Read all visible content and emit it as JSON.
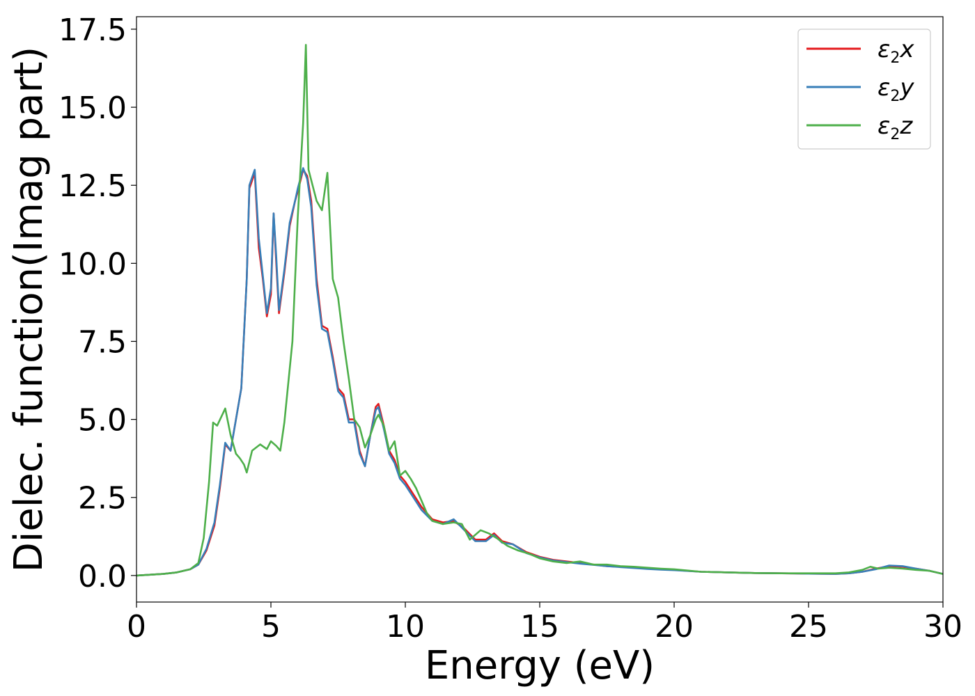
{
  "chart_data": {
    "type": "line",
    "title": "",
    "xlabel": "Energy (eV)",
    "ylabel": "Dielec. function(Imag part)",
    "xlim": [
      0,
      30
    ],
    "ylim": [
      -0.85,
      17.9
    ],
    "xticks": [
      0,
      5,
      10,
      15,
      20,
      25,
      30
    ],
    "xtick_labels": [
      "0",
      "5",
      "10",
      "15",
      "20",
      "25",
      "30"
    ],
    "yticks": [
      0,
      2.5,
      5,
      7.5,
      10,
      12.5,
      15,
      17.5
    ],
    "ytick_labels": [
      "0.0",
      "2.5",
      "5.0",
      "7.5",
      "10.0",
      "12.5",
      "15.0",
      "17.5"
    ],
    "grid": false,
    "legend_position": "top-right",
    "series": [
      {
        "name": "ε2x",
        "symbol": "ε",
        "subscript": "2",
        "suffix": "x",
        "color": "#e41a1c",
        "x": [
          0,
          1,
          1.5,
          2,
          2.3,
          2.6,
          2.9,
          3.1,
          3.3,
          3.5,
          3.7,
          3.9,
          4.1,
          4.2,
          4.4,
          4.55,
          4.7,
          4.85,
          5.0,
          5.1,
          5.2,
          5.3,
          5.5,
          5.7,
          5.9,
          6.0,
          6.2,
          6.35,
          6.5,
          6.7,
          6.9,
          7.1,
          7.3,
          7.5,
          7.7,
          7.9,
          8.1,
          8.3,
          8.5,
          8.7,
          8.9,
          9.0,
          9.2,
          9.4,
          9.6,
          9.8,
          10.0,
          10.3,
          10.6,
          11.0,
          11.4,
          11.8,
          12.2,
          12.6,
          13.0,
          13.3,
          13.6,
          14.0,
          14.5,
          15.0,
          15.5,
          16.0,
          16.5,
          17.0,
          17.5,
          18.0,
          18.5,
          19.0,
          19.5,
          20.0,
          21,
          22,
          23,
          24,
          25,
          26,
          26.5,
          27,
          27.5,
          28,
          28.5,
          29,
          29.5,
          30
        ],
        "y": [
          0,
          0.05,
          0.1,
          0.2,
          0.35,
          0.8,
          1.6,
          2.8,
          4.2,
          4.0,
          5.0,
          6.0,
          9.5,
          12.4,
          12.9,
          10.5,
          9.5,
          8.3,
          9.0,
          11.6,
          10.0,
          8.4,
          9.7,
          11.2,
          12.0,
          12.3,
          13.0,
          12.8,
          12.0,
          9.5,
          8.0,
          7.9,
          7.0,
          6.0,
          5.8,
          5.0,
          5.0,
          4.0,
          3.5,
          4.5,
          5.4,
          5.5,
          4.8,
          4.0,
          3.7,
          3.2,
          3.0,
          2.6,
          2.2,
          1.8,
          1.7,
          1.75,
          1.5,
          1.15,
          1.15,
          1.35,
          1.1,
          1.0,
          0.75,
          0.6,
          0.5,
          0.45,
          0.4,
          0.35,
          0.3,
          0.28,
          0.25,
          0.22,
          0.2,
          0.18,
          0.12,
          0.1,
          0.08,
          0.07,
          0.06,
          0.05,
          0.07,
          0.12,
          0.22,
          0.3,
          0.28,
          0.22,
          0.15,
          0.05
        ]
      },
      {
        "name": "ε2y",
        "symbol": "ε",
        "subscript": "2",
        "suffix": "y",
        "color": "#377eb8",
        "x": [
          0,
          1,
          1.5,
          2,
          2.3,
          2.6,
          2.9,
          3.1,
          3.3,
          3.5,
          3.7,
          3.9,
          4.1,
          4.2,
          4.4,
          4.55,
          4.7,
          4.85,
          5.0,
          5.1,
          5.2,
          5.3,
          5.5,
          5.7,
          5.9,
          6.0,
          6.2,
          6.35,
          6.5,
          6.7,
          6.9,
          7.1,
          7.3,
          7.5,
          7.7,
          7.9,
          8.1,
          8.3,
          8.5,
          8.7,
          8.9,
          9.0,
          9.2,
          9.4,
          9.6,
          9.8,
          10.0,
          10.3,
          10.6,
          11.0,
          11.4,
          11.8,
          12.2,
          12.6,
          13.0,
          13.3,
          13.6,
          14.0,
          14.5,
          15.0,
          15.5,
          16.0,
          16.5,
          17.0,
          17.5,
          18.0,
          18.5,
          19.0,
          19.5,
          20.0,
          21,
          22,
          23,
          24,
          25,
          26,
          26.5,
          27,
          27.5,
          28,
          28.5,
          29,
          29.5,
          30
        ],
        "y": [
          0,
          0.05,
          0.1,
          0.2,
          0.35,
          0.85,
          1.7,
          2.9,
          4.25,
          4.0,
          5.0,
          6.0,
          9.5,
          12.5,
          13.0,
          10.8,
          9.6,
          8.4,
          9.2,
          11.6,
          10.2,
          8.5,
          9.8,
          11.3,
          12.0,
          12.4,
          13.05,
          12.7,
          11.8,
          9.3,
          7.9,
          7.8,
          6.9,
          5.9,
          5.7,
          4.9,
          4.9,
          3.9,
          3.5,
          4.5,
          5.3,
          5.4,
          4.7,
          3.9,
          3.6,
          3.1,
          2.9,
          2.5,
          2.1,
          1.75,
          1.65,
          1.8,
          1.45,
          1.1,
          1.1,
          1.3,
          1.05,
          1.0,
          0.72,
          0.58,
          0.48,
          0.43,
          0.38,
          0.34,
          0.3,
          0.27,
          0.24,
          0.21,
          0.19,
          0.17,
          0.12,
          0.1,
          0.08,
          0.07,
          0.06,
          0.05,
          0.07,
          0.12,
          0.2,
          0.32,
          0.3,
          0.22,
          0.15,
          0.05
        ]
      },
      {
        "name": "ε2z",
        "symbol": "ε",
        "subscript": "2",
        "suffix": "z",
        "color": "#4daf4a",
        "x": [
          0,
          1,
          1.5,
          2,
          2.3,
          2.5,
          2.7,
          2.85,
          3.0,
          3.3,
          3.5,
          3.7,
          3.85,
          4.0,
          4.1,
          4.3,
          4.6,
          4.85,
          5.0,
          5.2,
          5.35,
          5.5,
          5.8,
          6.0,
          6.2,
          6.3,
          6.4,
          6.55,
          6.7,
          6.9,
          7.1,
          7.3,
          7.5,
          7.7,
          7.9,
          8.1,
          8.3,
          8.5,
          8.7,
          8.9,
          9.0,
          9.2,
          9.4,
          9.6,
          9.8,
          10.0,
          10.2,
          10.4,
          10.6,
          10.8,
          11.0,
          11.4,
          11.8,
          12.1,
          12.4,
          12.8,
          13.1,
          13.4,
          13.8,
          14.2,
          14.6,
          15.0,
          15.5,
          16.0,
          16.5,
          17.0,
          17.5,
          18.0,
          18.5,
          19.0,
          19.5,
          20.0,
          21,
          22,
          23,
          24,
          25,
          26,
          26.5,
          27,
          27.3,
          27.6,
          28,
          28.5,
          29,
          29.5,
          30
        ],
        "y": [
          0,
          0.05,
          0.1,
          0.2,
          0.4,
          1.2,
          3.0,
          4.9,
          4.8,
          5.35,
          4.5,
          3.9,
          3.75,
          3.55,
          3.3,
          4.0,
          4.2,
          4.05,
          4.3,
          4.15,
          4.0,
          4.9,
          7.5,
          11.5,
          14.5,
          17.0,
          13.0,
          12.5,
          12.0,
          11.7,
          12.9,
          9.5,
          8.9,
          7.5,
          6.3,
          5.0,
          4.75,
          4.1,
          4.5,
          5.0,
          5.15,
          4.8,
          4.0,
          4.3,
          3.2,
          3.35,
          3.1,
          2.8,
          2.4,
          2.0,
          1.75,
          1.65,
          1.7,
          1.65,
          1.15,
          1.45,
          1.35,
          1.2,
          0.95,
          0.8,
          0.7,
          0.55,
          0.45,
          0.4,
          0.45,
          0.35,
          0.35,
          0.3,
          0.28,
          0.25,
          0.22,
          0.2,
          0.12,
          0.1,
          0.08,
          0.07,
          0.07,
          0.07,
          0.1,
          0.18,
          0.28,
          0.22,
          0.25,
          0.22,
          0.18,
          0.15,
          0.05
        ]
      }
    ]
  }
}
